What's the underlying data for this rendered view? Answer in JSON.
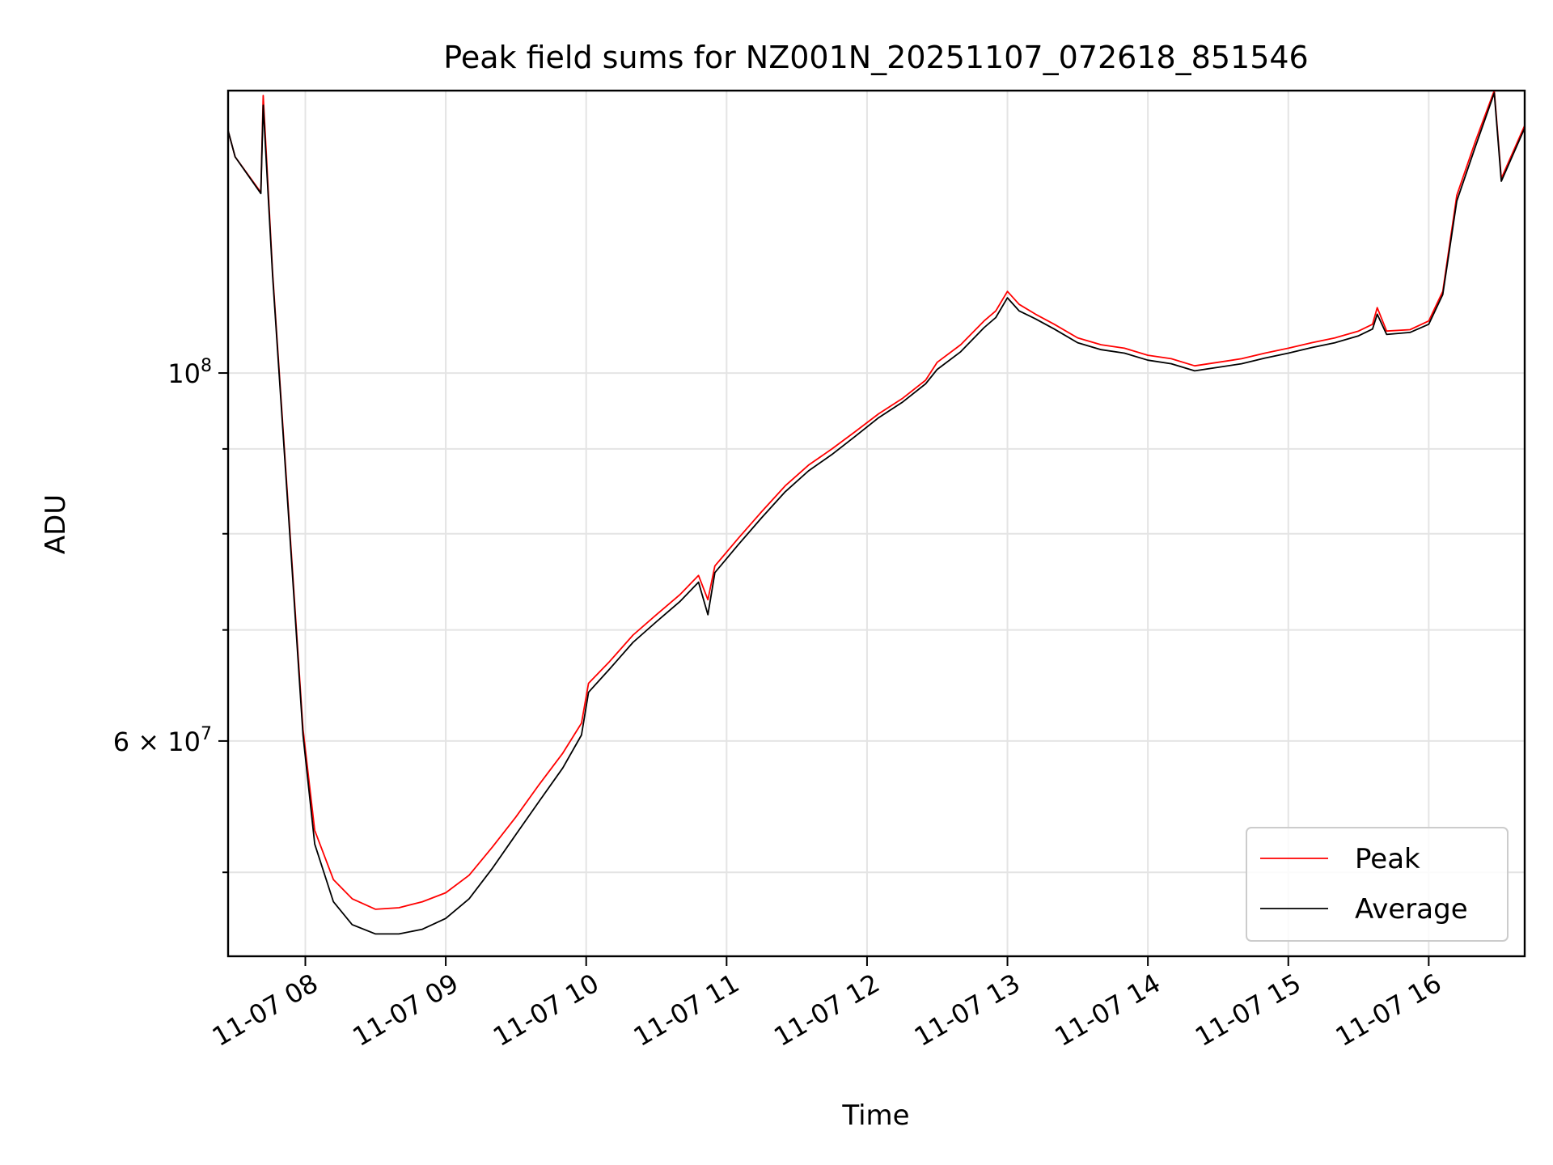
{
  "chart_data": {
    "type": "line",
    "title": "Peak field sums for NZ001N_20251107_072618_851546",
    "xlabel": "Time",
    "ylabel": "ADU",
    "x_scale": "time",
    "y_scale": "log",
    "xlim": [
      "2025-11-07 07:27",
      "2025-11-07 16:41"
    ],
    "ylim": [
      44500000,
      148000000
    ],
    "x_tick_labels": [
      "11-07 08",
      "11-07 09",
      "11-07 10",
      "11-07 11",
      "11-07 12",
      "11-07 13",
      "11-07 14",
      "11-07 15",
      "11-07 16"
    ],
    "y_tick_labels": [
      {
        "value": 100000000,
        "base": "10",
        "exp": "8",
        "mult": ""
      },
      {
        "value": 60000000,
        "base": "10",
        "exp": "7",
        "mult": "6 × "
      }
    ],
    "grid": true,
    "legend_position": "lower right",
    "series": [
      {
        "name": "Peak",
        "color": "#ff0000",
        "points": [
          [
            "2025-11-07 07:27",
            140000000
          ],
          [
            "2025-11-07 07:30",
            135000000
          ],
          [
            "2025-11-07 07:41",
            128500000
          ],
          [
            "2025-11-07 07:42",
            147000000
          ],
          [
            "2025-11-07 07:46",
            115000000
          ],
          [
            "2025-11-07 07:54",
            78000000
          ],
          [
            "2025-11-07 07:59",
            61000000
          ],
          [
            "2025-11-07 08:04",
            53000000
          ],
          [
            "2025-11-07 08:12",
            49500000
          ],
          [
            "2025-11-07 08:20",
            48200000
          ],
          [
            "2025-11-07 08:30",
            47500000
          ],
          [
            "2025-11-07 08:40",
            47600000
          ],
          [
            "2025-11-07 08:50",
            48000000
          ],
          [
            "2025-11-07 09:00",
            48600000
          ],
          [
            "2025-11-07 09:10",
            49800000
          ],
          [
            "2025-11-07 09:20",
            51800000
          ],
          [
            "2025-11-07 09:30",
            54000000
          ],
          [
            "2025-11-07 09:40",
            56500000
          ],
          [
            "2025-11-07 09:50",
            59000000
          ],
          [
            "2025-11-07 09:58",
            61500000
          ],
          [
            "2025-11-07 10:01",
            65000000
          ],
          [
            "2025-11-07 10:10",
            67000000
          ],
          [
            "2025-11-07 10:20",
            69500000
          ],
          [
            "2025-11-07 10:30",
            71500000
          ],
          [
            "2025-11-07 10:40",
            73500000
          ],
          [
            "2025-11-07 10:48",
            75500000
          ],
          [
            "2025-11-07 10:52",
            73000000
          ],
          [
            "2025-11-07 10:55",
            76500000
          ],
          [
            "2025-11-07 11:05",
            79500000
          ],
          [
            "2025-11-07 11:15",
            82500000
          ],
          [
            "2025-11-07 11:25",
            85500000
          ],
          [
            "2025-11-07 11:35",
            88000000
          ],
          [
            "2025-11-07 11:45",
            90000000
          ],
          [
            "2025-11-07 11:55",
            92200000
          ],
          [
            "2025-11-07 12:05",
            94500000
          ],
          [
            "2025-11-07 12:15",
            96500000
          ],
          [
            "2025-11-07 12:25",
            99000000
          ],
          [
            "2025-11-07 12:30",
            101500000
          ],
          [
            "2025-11-07 12:40",
            104000000
          ],
          [
            "2025-11-07 12:50",
            107500000
          ],
          [
            "2025-11-07 12:55",
            109000000
          ],
          [
            "2025-11-07 13:00",
            112000000
          ],
          [
            "2025-11-07 13:05",
            110000000
          ],
          [
            "2025-11-07 13:12",
            108500000
          ],
          [
            "2025-11-07 13:20",
            107000000
          ],
          [
            "2025-11-07 13:30",
            105000000
          ],
          [
            "2025-11-07 13:40",
            104000000
          ],
          [
            "2025-11-07 13:50",
            103500000
          ],
          [
            "2025-11-07 14:00",
            102500000
          ],
          [
            "2025-11-07 14:10",
            102000000
          ],
          [
            "2025-11-07 14:20",
            101000000
          ],
          [
            "2025-11-07 14:30",
            101500000
          ],
          [
            "2025-11-07 14:40",
            102000000
          ],
          [
            "2025-11-07 14:50",
            102800000
          ],
          [
            "2025-11-07 15:00",
            103500000
          ],
          [
            "2025-11-07 15:10",
            104300000
          ],
          [
            "2025-11-07 15:20",
            105000000
          ],
          [
            "2025-11-07 15:30",
            106000000
          ],
          [
            "2025-11-07 15:36",
            107000000
          ],
          [
            "2025-11-07 15:38",
            109500000
          ],
          [
            "2025-11-07 15:42",
            106000000
          ],
          [
            "2025-11-07 15:52",
            106200000
          ],
          [
            "2025-11-07 16:00",
            107500000
          ],
          [
            "2025-11-07 16:06",
            112000000
          ],
          [
            "2025-11-07 16:12",
            128000000
          ],
          [
            "2025-11-07 16:20",
            138000000
          ],
          [
            "2025-11-07 16:28",
            148000000
          ],
          [
            "2025-11-07 16:31",
            131000000
          ],
          [
            "2025-11-07 16:41",
            141000000
          ]
        ]
      },
      {
        "name": "Average",
        "color": "#000000",
        "points": [
          [
            "2025-11-07 07:27",
            140000000
          ],
          [
            "2025-11-07 07:30",
            135000000
          ],
          [
            "2025-11-07 07:41",
            128300000
          ],
          [
            "2025-11-07 07:42",
            145000000
          ],
          [
            "2025-11-07 07:46",
            114500000
          ],
          [
            "2025-11-07 07:54",
            77500000
          ],
          [
            "2025-11-07 07:59",
            60500000
          ],
          [
            "2025-11-07 08:04",
            52000000
          ],
          [
            "2025-11-07 08:12",
            48000000
          ],
          [
            "2025-11-07 08:20",
            46500000
          ],
          [
            "2025-11-07 08:30",
            45900000
          ],
          [
            "2025-11-07 08:40",
            45900000
          ],
          [
            "2025-11-07 08:50",
            46200000
          ],
          [
            "2025-11-07 09:00",
            46900000
          ],
          [
            "2025-11-07 09:10",
            48200000
          ],
          [
            "2025-11-07 09:20",
            50300000
          ],
          [
            "2025-11-07 09:30",
            52700000
          ],
          [
            "2025-11-07 09:40",
            55200000
          ],
          [
            "2025-11-07 09:50",
            57800000
          ],
          [
            "2025-11-07 09:58",
            60500000
          ],
          [
            "2025-11-07 10:01",
            64200000
          ],
          [
            "2025-11-07 10:10",
            66300000
          ],
          [
            "2025-11-07 10:20",
            68800000
          ],
          [
            "2025-11-07 10:30",
            70800000
          ],
          [
            "2025-11-07 10:40",
            72800000
          ],
          [
            "2025-11-07 10:48",
            74800000
          ],
          [
            "2025-11-07 10:52",
            71500000
          ],
          [
            "2025-11-07 10:55",
            75800000
          ],
          [
            "2025-11-07 11:05",
            78800000
          ],
          [
            "2025-11-07 11:15",
            81800000
          ],
          [
            "2025-11-07 11:25",
            84800000
          ],
          [
            "2025-11-07 11:35",
            87300000
          ],
          [
            "2025-11-07 11:45",
            89300000
          ],
          [
            "2025-11-07 11:55",
            91600000
          ],
          [
            "2025-11-07 12:05",
            94000000
          ],
          [
            "2025-11-07 12:15",
            96000000
          ],
          [
            "2025-11-07 12:25",
            98500000
          ],
          [
            "2025-11-07 12:30",
            100500000
          ],
          [
            "2025-11-07 12:40",
            103000000
          ],
          [
            "2025-11-07 12:50",
            106500000
          ],
          [
            "2025-11-07 12:55",
            108000000
          ],
          [
            "2025-11-07 13:00",
            111000000
          ],
          [
            "2025-11-07 13:05",
            109000000
          ],
          [
            "2025-11-07 13:12",
            107800000
          ],
          [
            "2025-11-07 13:20",
            106300000
          ],
          [
            "2025-11-07 13:30",
            104300000
          ],
          [
            "2025-11-07 13:40",
            103300000
          ],
          [
            "2025-11-07 13:50",
            102800000
          ],
          [
            "2025-11-07 14:00",
            101800000
          ],
          [
            "2025-11-07 14:10",
            101300000
          ],
          [
            "2025-11-07 14:20",
            100300000
          ],
          [
            "2025-11-07 14:30",
            100800000
          ],
          [
            "2025-11-07 14:40",
            101300000
          ],
          [
            "2025-11-07 14:50",
            102100000
          ],
          [
            "2025-11-07 15:00",
            102800000
          ],
          [
            "2025-11-07 15:10",
            103600000
          ],
          [
            "2025-11-07 15:20",
            104300000
          ],
          [
            "2025-11-07 15:30",
            105300000
          ],
          [
            "2025-11-07 15:36",
            106300000
          ],
          [
            "2025-11-07 15:38",
            108500000
          ],
          [
            "2025-11-07 15:42",
            105500000
          ],
          [
            "2025-11-07 15:52",
            105800000
          ],
          [
            "2025-11-07 16:00",
            107000000
          ],
          [
            "2025-11-07 16:06",
            111500000
          ],
          [
            "2025-11-07 16:12",
            127000000
          ],
          [
            "2025-11-07 16:20",
            137000000
          ],
          [
            "2025-11-07 16:28",
            147500000
          ],
          [
            "2025-11-07 16:31",
            130500000
          ],
          [
            "2025-11-07 16:41",
            140500000
          ]
        ]
      }
    ]
  }
}
